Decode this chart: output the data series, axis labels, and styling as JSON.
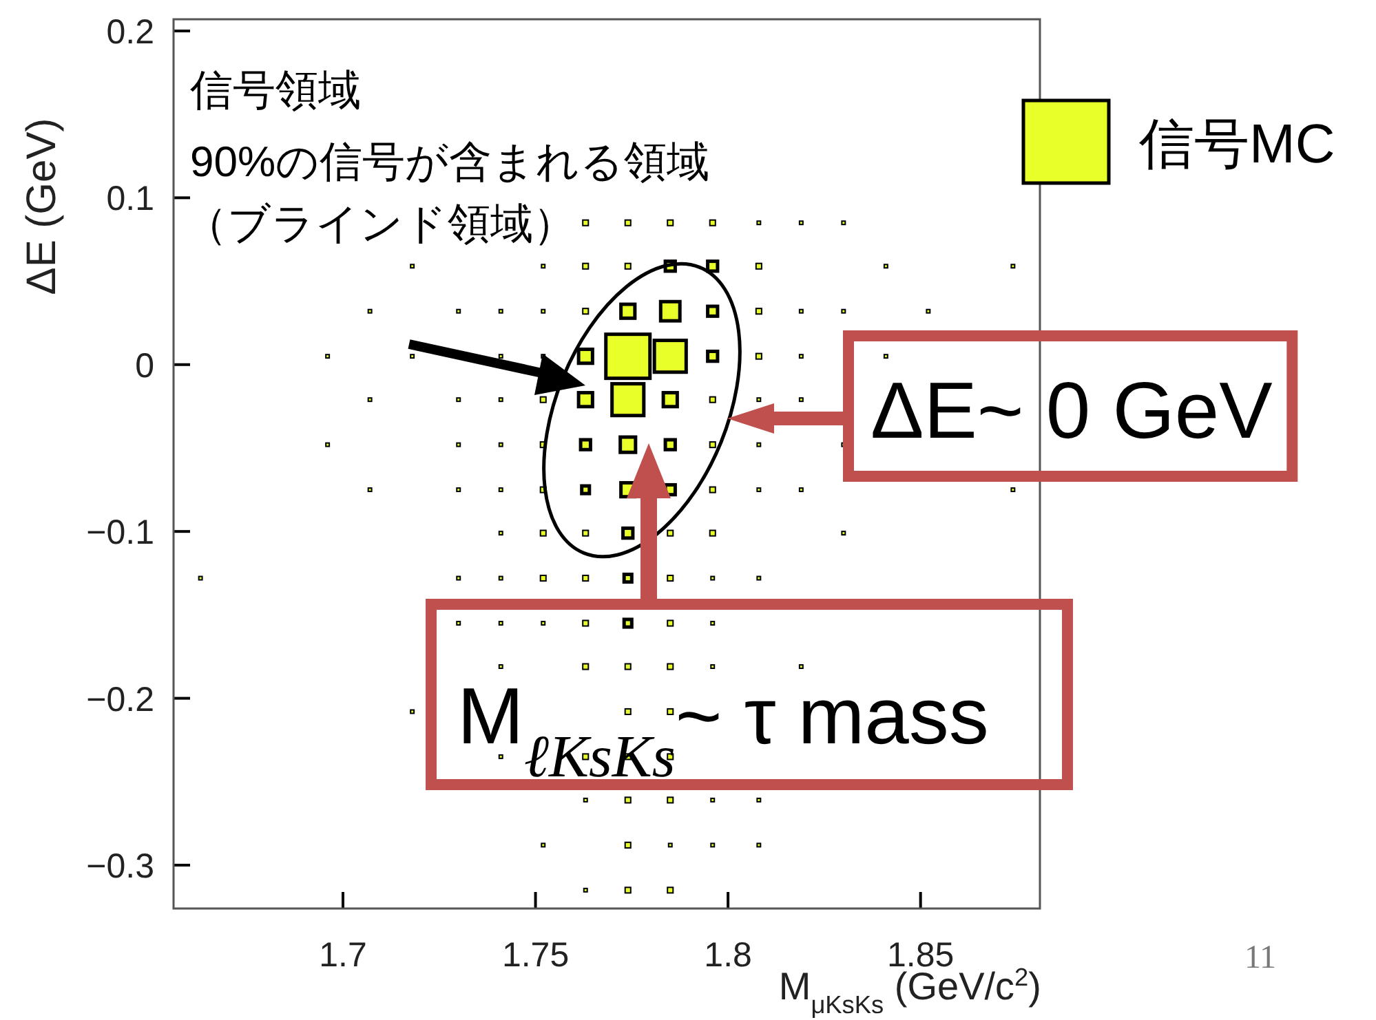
{
  "chart_data": {
    "type": "bubble",
    "xlabel": "M$_{μKsKs}$ (GeV/c$^{2}$)",
    "ylabel": "ΔE (GeV)",
    "xlim": [
      1.656,
      1.881
    ],
    "ylim": [
      -0.326,
      0.207
    ],
    "xticks": [
      1.7,
      1.75,
      1.8,
      1.85
    ],
    "yticks": [
      0.2,
      0.1,
      0,
      {
        "value": -0.1,
        "label": "−0.1"
      },
      {
        "value": -0.2,
        "label": "−0.2"
      },
      {
        "value": -0.3,
        "label": "−0.3"
      }
    ],
    "legend": "right",
    "marker": "square",
    "annotations": [
      "信号領域",
      "90%の信号が含まれる領域",
      "（ブラインド領域）",
      "ΔE~ 0 GeV",
      "M$_{ℓKsKs}$~ τ mass",
      "11"
    ],
    "series": [
      {
        "name": "信号MC",
        "color": "#e8ff2a",
        "x": [
          1.763,
          1.774,
          1.785,
          1.796,
          1.808,
          1.819,
          1.83,
          1.718,
          1.752,
          1.763,
          1.774,
          1.785,
          1.796,
          1.808,
          1.841,
          1.874,
          1.707,
          1.73,
          1.741,
          1.752,
          1.763,
          1.774,
          1.785,
          1.796,
          1.808,
          1.819,
          1.83,
          1.852,
          1.696,
          1.718,
          1.741,
          1.752,
          1.763,
          1.774,
          1.785,
          1.796,
          1.808,
          1.819,
          1.841,
          1.707,
          1.73,
          1.741,
          1.752,
          1.763,
          1.774,
          1.785,
          1.796,
          1.808,
          1.819,
          1.696,
          1.73,
          1.741,
          1.752,
          1.763,
          1.774,
          1.785,
          1.796,
          1.808,
          1.83,
          1.707,
          1.73,
          1.741,
          1.752,
          1.763,
          1.774,
          1.785,
          1.796,
          1.808,
          1.819,
          1.874,
          1.741,
          1.752,
          1.763,
          1.774,
          1.785,
          1.796,
          1.83,
          1.663,
          1.73,
          1.741,
          1.752,
          1.763,
          1.774,
          1.785,
          1.796,
          1.808,
          1.73,
          1.741,
          1.752,
          1.763,
          1.774,
          1.785,
          1.796,
          1.741,
          1.763,
          1.774,
          1.785,
          1.796,
          1.819,
          1.718,
          1.774,
          1.785,
          1.741,
          1.763,
          1.774,
          1.785,
          1.763,
          1.774,
          1.785,
          1.796,
          1.808,
          1.752,
          1.774,
          1.785,
          1.796,
          1.808,
          1.763,
          1.774,
          1.785
        ],
        "values": [
          0.085,
          0.085,
          0.085,
          0.085,
          0.085,
          0.085,
          0.085,
          0.059,
          0.059,
          0.059,
          0.059,
          0.059,
          0.059,
          0.059,
          0.059,
          0.059,
          0.032,
          0.032,
          0.032,
          0.032,
          0.032,
          0.032,
          0.032,
          0.032,
          0.032,
          0.032,
          0.032,
          0.032,
          0.005,
          0.005,
          0.005,
          0.005,
          0.005,
          0.005,
          0.005,
          0.005,
          0.005,
          0.005,
          0.005,
          -0.021,
          -0.021,
          -0.021,
          -0.021,
          -0.021,
          -0.021,
          -0.021,
          -0.021,
          -0.021,
          -0.021,
          -0.048,
          -0.048,
          -0.048,
          -0.048,
          -0.048,
          -0.048,
          -0.048,
          -0.048,
          -0.048,
          -0.048,
          -0.075,
          -0.075,
          -0.075,
          -0.075,
          -0.075,
          -0.075,
          -0.075,
          -0.075,
          -0.075,
          -0.075,
          -0.075,
          -0.101,
          -0.101,
          -0.101,
          -0.101,
          -0.101,
          -0.101,
          -0.101,
          -0.128,
          -0.128,
          -0.128,
          -0.128,
          -0.128,
          -0.128,
          -0.128,
          -0.128,
          -0.128,
          -0.155,
          -0.155,
          -0.155,
          -0.155,
          -0.155,
          -0.155,
          -0.155,
          -0.181,
          -0.181,
          -0.181,
          -0.181,
          -0.181,
          -0.181,
          -0.208,
          -0.208,
          -0.208,
          -0.235,
          -0.235,
          -0.235,
          -0.235,
          -0.261,
          -0.261,
          -0.261,
          -0.261,
          -0.261,
          -0.288,
          -0.288,
          -0.288,
          -0.288,
          -0.288,
          -0.315,
          -0.315,
          -0.315
        ],
        "sizes": [
          0.016,
          0.016,
          0.016,
          0.016,
          0.006,
          0.006,
          0.006,
          0.006,
          0.006,
          0.016,
          0.016,
          0.05,
          0.05,
          0.016,
          0.006,
          0.006,
          0.006,
          0.006,
          0.006,
          0.006,
          0.016,
          0.1,
          0.19,
          0.05,
          0.016,
          0.006,
          0.006,
          0.006,
          0.006,
          0.006,
          0.006,
          0.006,
          0.1,
          1,
          0.52,
          0.05,
          0.016,
          0.006,
          0.006,
          0.006,
          0.006,
          0.006,
          0.016,
          0.1,
          0.52,
          0.1,
          0.016,
          0.006,
          0.006,
          0.006,
          0.006,
          0.006,
          0.016,
          0.05,
          0.12,
          0.05,
          0.016,
          0.006,
          0.006,
          0.006,
          0.006,
          0.006,
          0.016,
          0.03,
          0.1,
          0.05,
          0.016,
          0.006,
          0.006,
          0.006,
          0.006,
          0.016,
          0.016,
          0.05,
          0.016,
          0.016,
          0.006,
          0.006,
          0.006,
          0.006,
          0.016,
          0.016,
          0.03,
          0.016,
          0.006,
          0.006,
          0.006,
          0.006,
          0.006,
          0.016,
          0.03,
          0.016,
          0.006,
          0.006,
          0.016,
          0.016,
          0.016,
          0.006,
          0.006,
          0.006,
          0.016,
          0.016,
          0.006,
          0.016,
          0.016,
          0.016,
          0.006,
          0.016,
          0.016,
          0.006,
          0.006,
          0.006,
          0.016,
          0.006,
          0.006,
          0.006,
          0.006,
          0.016,
          0.016
        ]
      }
    ]
  }
}
